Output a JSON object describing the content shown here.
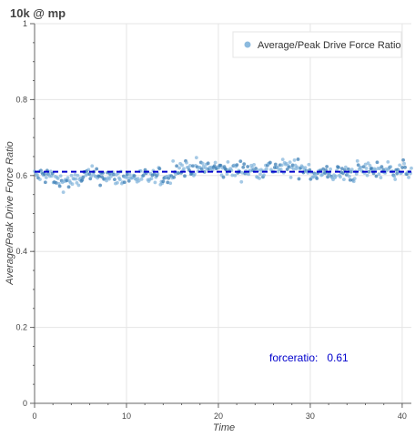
{
  "chart_data": {
    "type": "scatter",
    "title": "10k @ mp",
    "xlabel": "Time",
    "ylabel": "Average/Peak Drive Force Ratio",
    "xlim": [
      0,
      41
    ],
    "ylim": [
      0,
      1
    ],
    "x_ticks": [
      "0",
      "10",
      "20",
      "30",
      "40"
    ],
    "y_ticks": [
      "0",
      "0.2",
      "0.4",
      "0.6",
      "0.8",
      "1"
    ],
    "grid": true,
    "legend_position": "top-right",
    "series": [
      {
        "name": "Average/Peak Drive Force Ratio",
        "color": "#7fb2da",
        "color_dark": "#3d7fb5",
        "point_count": 420,
        "mean": 0.61,
        "spread": 0.02,
        "segments": [
          {
            "x": [
              0,
              2
            ],
            "level": 0.6
          },
          {
            "x": [
              2,
              5
            ],
            "level": 0.585
          },
          {
            "x": [
              5,
              8
            ],
            "level": 0.6
          },
          {
            "x": [
              8,
              15
            ],
            "level": 0.595
          },
          {
            "x": [
              15,
              20
            ],
            "level": 0.62
          },
          {
            "x": [
              20,
              25
            ],
            "level": 0.615
          },
          {
            "x": [
              25,
              30
            ],
            "level": 0.62
          },
          {
            "x": [
              30,
              35
            ],
            "level": 0.605
          },
          {
            "x": [
              35,
              41
            ],
            "level": 0.615
          }
        ]
      }
    ],
    "reference_line": {
      "y": 0.61,
      "color": "#0000cc",
      "style": "dashed"
    },
    "annotation": {
      "label": "forceratio:",
      "value": "0.61",
      "color": "#0000cc",
      "x": 26,
      "y": 0.12
    }
  }
}
